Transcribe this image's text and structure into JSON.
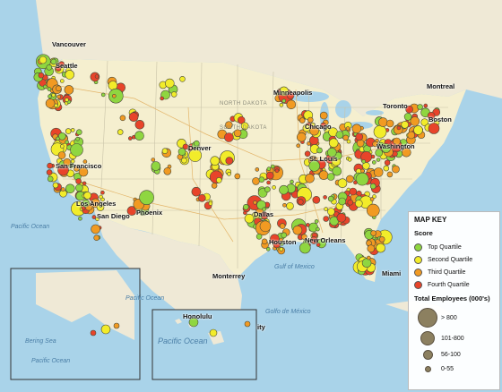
{
  "map": {
    "cities": [
      "Vancouver",
      "Seattle",
      "San Francisco",
      "Los Angeles",
      "San Diego",
      "Phoenix",
      "Denver",
      "Dallas",
      "Houston",
      "New Orleans",
      "Minneapolis",
      "Chicago",
      "St. Louis",
      "Toronto",
      "Montreal",
      "Boston",
      "Washington",
      "Miami",
      "Monterrey",
      "Honolulu"
    ],
    "states": [
      "NORTH DAKOTA",
      "SOUTH DAKOTA"
    ],
    "waters": [
      "Pacific Ocean",
      "Pacific Ocean",
      "Bering Sea",
      "Pacific Ocean",
      "Gulf of Mexico",
      "Golfo de México"
    ],
    "fragments": [
      "ity"
    ]
  },
  "legend": {
    "title": "MAP KEY",
    "score_title": "Score",
    "score": [
      {
        "label": "Top Quartile",
        "color": "#8fd640"
      },
      {
        "label": "Second Quartile",
        "color": "#f2ec2a"
      },
      {
        "label": "Third Quartile",
        "color": "#f19a22"
      },
      {
        "label": "Fourth Quartile",
        "color": "#e8442a"
      }
    ],
    "size_title": "Total Employees (000's)",
    "sizes": [
      {
        "label": "> 800",
        "size": 4
      },
      {
        "label": "101-800",
        "size": 3
      },
      {
        "label": "56-100",
        "size": 2
      },
      {
        "label": "0-55",
        "size": 1
      }
    ]
  }
}
